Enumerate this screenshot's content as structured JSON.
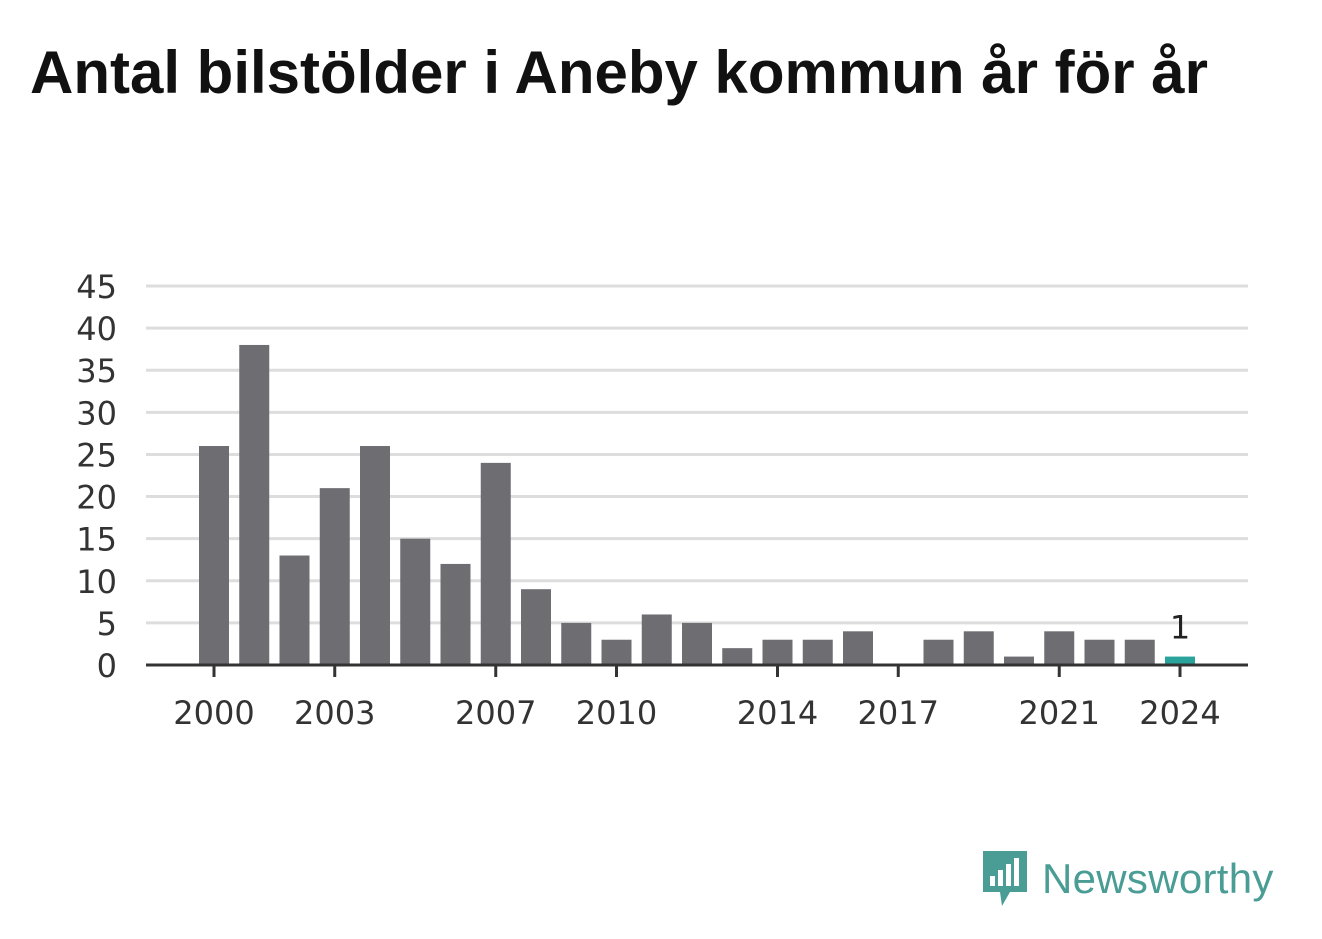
{
  "title": "Antal bilstölder i Aneby kommun år för år",
  "brand": {
    "name": "Newsworthy",
    "icon": "newsworthy-logo-icon"
  },
  "colors": {
    "bar": "#6e6d72",
    "highlight": "#29a39b",
    "grid": "#dddddd",
    "axis": "#333333",
    "brand": "#4a9d95"
  },
  "chart_data": {
    "type": "bar",
    "title": "Antal bilstölder i Aneby kommun år för år",
    "xlabel": "",
    "ylabel": "",
    "ylim": [
      0,
      45
    ],
    "y_ticks": [
      "0",
      "5",
      "10",
      "15",
      "20",
      "25",
      "30",
      "35",
      "40",
      "45"
    ],
    "x_tick_labels": [
      "2000",
      "2003",
      "2007",
      "2010",
      "2014",
      "2017",
      "2021",
      "2024"
    ],
    "categories": [
      "2000",
      "2001",
      "2002",
      "2003",
      "2004",
      "2005",
      "2006",
      "2007",
      "2008",
      "2009",
      "2010",
      "2011",
      "2012",
      "2013",
      "2014",
      "2015",
      "2016",
      "2017",
      "2018",
      "2019",
      "2020",
      "2021",
      "2022",
      "2023",
      "2024"
    ],
    "values": [
      26,
      38,
      13,
      21,
      26,
      15,
      12,
      24,
      9,
      5,
      3,
      6,
      5,
      2,
      3,
      3,
      4,
      0,
      3,
      4,
      1,
      4,
      3,
      3,
      1
    ],
    "highlight": {
      "category": "2024",
      "label": "1"
    },
    "grid": true
  }
}
